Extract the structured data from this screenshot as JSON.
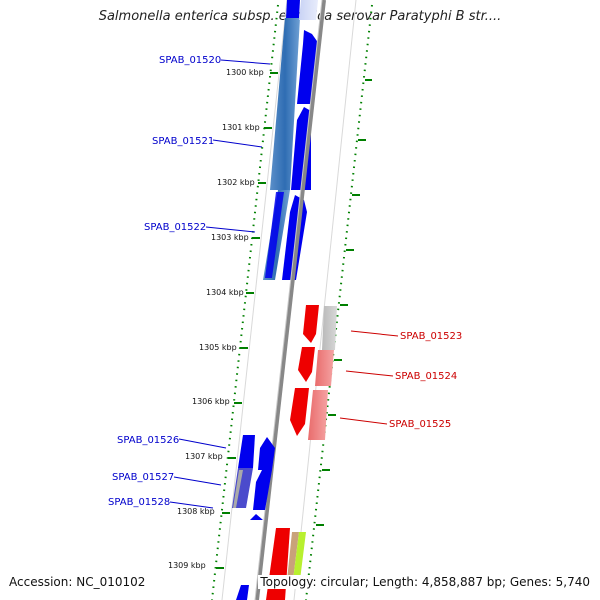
{
  "title": "Salmonella enterica subsp. enterica serovar Paratyphi B str....",
  "accession": "Accession: NC_010102",
  "topology": "Topology: circular; Length: 4,858,887 bp; Genes: 5,740",
  "colors": {
    "forward_gene": "#0000ff",
    "reverse_gene": "#ff0000",
    "forward_label": "#0000cc",
    "reverse_label": "#cc0000",
    "tick": "#008000",
    "backbone": "#8a8a8a"
  },
  "ticks": [
    "1300 kbp",
    "1301 kbp",
    "1302 kbp",
    "1303 kbp",
    "1304 kbp",
    "1305 kbp",
    "1306 kbp",
    "1307 kbp",
    "1308 kbp",
    "1309 kbp"
  ],
  "genes_forward": [
    "SPAB_01520",
    "SPAB_01521",
    "SPAB_01522",
    "SPAB_01526",
    "SPAB_01527",
    "SPAB_01528"
  ],
  "genes_reverse": [
    "SPAB_01523",
    "SPAB_01524",
    "SPAB_01525"
  ]
}
